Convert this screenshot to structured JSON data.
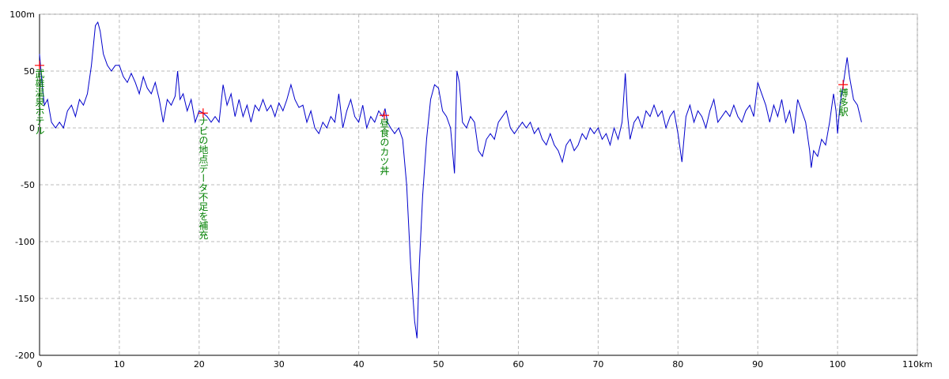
{
  "chart_data": {
    "type": "line",
    "color": "#0000cc",
    "marker_color": "#ff0000",
    "annotation_color": "#008000",
    "grid": true,
    "xlim": [
      0,
      110
    ],
    "ylim": [
      -200,
      100
    ],
    "xticks": [
      0,
      10,
      20,
      30,
      40,
      50,
      60,
      70,
      80,
      90,
      100,
      {
        "value": 110,
        "label": "110km"
      }
    ],
    "yticks": [
      {
        "value": 100,
        "label": "100m"
      },
      50,
      0,
      -50,
      -100,
      -150,
      -200
    ],
    "x": [
      0,
      0.3,
      0.6,
      1,
      1.5,
      2,
      2.5,
      3,
      3.5,
      4,
      4.5,
      5,
      5.5,
      6,
      6.5,
      7,
      7.3,
      7.6,
      8,
      8.5,
      9,
      9.5,
      10,
      10.5,
      11,
      11.5,
      12,
      12.5,
      13,
      13.5,
      14,
      14.5,
      15,
      15.5,
      16,
      16.5,
      17,
      17.3,
      17.6,
      18,
      18.5,
      19,
      19.5,
      20,
      20.5,
      21,
      21.5,
      22,
      22.5,
      23,
      23.5,
      24,
      24.5,
      25,
      25.5,
      26,
      26.5,
      27,
      27.5,
      28,
      28.5,
      29,
      29.5,
      30,
      30.5,
      31,
      31.5,
      32,
      32.5,
      33,
      33.5,
      34,
      34.5,
      35,
      35.5,
      36,
      36.5,
      37,
      37.5,
      38,
      38.5,
      39,
      39.5,
      40,
      40.5,
      41,
      41.5,
      42,
      42.5,
      43,
      43.3,
      43.6,
      44,
      44.5,
      45,
      45.5,
      46,
      46.5,
      47,
      47.3,
      47.6,
      48,
      48.5,
      49,
      49.5,
      50,
      50.5,
      51,
      51.5,
      52,
      52.3,
      52.6,
      53,
      53.5,
      54,
      54.5,
      55,
      55.5,
      56,
      56.5,
      57,
      57.5,
      58,
      58.5,
      59,
      59.5,
      60,
      60.5,
      61,
      61.5,
      62,
      62.5,
      63,
      63.5,
      64,
      64.5,
      65,
      65.5,
      66,
      66.5,
      67,
      67.5,
      68,
      68.5,
      69,
      69.5,
      70,
      70.5,
      71,
      71.5,
      72,
      72.5,
      73,
      73.4,
      73.7,
      74,
      74.5,
      75,
      75.5,
      76,
      76.5,
      77,
      77.5,
      78,
      78.5,
      79,
      79.5,
      80,
      80.5,
      81,
      81.5,
      82,
      82.5,
      83,
      83.5,
      84,
      84.5,
      85,
      85.5,
      86,
      86.5,
      87,
      87.5,
      88,
      88.5,
      89,
      89.5,
      90,
      90.5,
      91,
      91.5,
      92,
      92.5,
      93,
      93.5,
      94,
      94.5,
      95,
      95.5,
      96,
      96.5,
      96.7,
      97,
      97.5,
      98,
      98.5,
      99,
      99.5,
      99.8,
      100,
      100.3,
      100.7,
      101.2,
      101.5,
      102,
      102.5,
      103
    ],
    "values": [
      65,
      40,
      20,
      25,
      5,
      0,
      5,
      0,
      15,
      20,
      10,
      25,
      20,
      30,
      55,
      90,
      93,
      85,
      65,
      55,
      50,
      55,
      55,
      45,
      40,
      48,
      40,
      30,
      45,
      35,
      30,
      40,
      25,
      5,
      25,
      20,
      28,
      50,
      25,
      30,
      15,
      25,
      5,
      15,
      13,
      10,
      5,
      10,
      5,
      38,
      20,
      30,
      10,
      25,
      10,
      20,
      5,
      20,
      15,
      25,
      15,
      20,
      10,
      22,
      15,
      25,
      38,
      25,
      18,
      20,
      5,
      15,
      0,
      -5,
      5,
      0,
      10,
      5,
      30,
      0,
      15,
      25,
      10,
      5,
      20,
      0,
      10,
      5,
      15,
      10,
      17,
      5,
      0,
      -5,
      0,
      -10,
      -50,
      -120,
      -170,
      -185,
      -120,
      -60,
      -10,
      25,
      38,
      35,
      15,
      10,
      0,
      -40,
      50,
      40,
      5,
      0,
      10,
      5,
      -20,
      -25,
      -10,
      -5,
      -10,
      5,
      10,
      15,
      0,
      -5,
      0,
      5,
      0,
      5,
      -5,
      0,
      -10,
      -15,
      -5,
      -15,
      -20,
      -30,
      -15,
      -10,
      -20,
      -15,
      -5,
      -10,
      0,
      -5,
      0,
      -10,
      -5,
      -15,
      0,
      -10,
      5,
      48,
      10,
      -10,
      5,
      10,
      0,
      15,
      10,
      20,
      10,
      15,
      0,
      10,
      15,
      -5,
      -30,
      10,
      20,
      5,
      15,
      10,
      0,
      15,
      25,
      5,
      10,
      15,
      10,
      20,
      10,
      5,
      15,
      20,
      10,
      40,
      30,
      20,
      5,
      20,
      10,
      25,
      5,
      15,
      -5,
      25,
      15,
      5,
      -20,
      -35,
      -20,
      -25,
      -10,
      -15,
      5,
      30,
      15,
      -5,
      20,
      38,
      62,
      45,
      25,
      20,
      5
    ],
    "annotations": [
      {
        "x": 0,
        "y": 55,
        "label": "武雄温泉ホテル"
      },
      {
        "x": 20.5,
        "y": 13,
        "label": "ナビの地点データ不足を補充"
      },
      {
        "x": 43.2,
        "y": 11,
        "label": "昼食のカツ丼"
      },
      {
        "x": 100.7,
        "y": 38,
        "label": "博多駅"
      }
    ]
  }
}
